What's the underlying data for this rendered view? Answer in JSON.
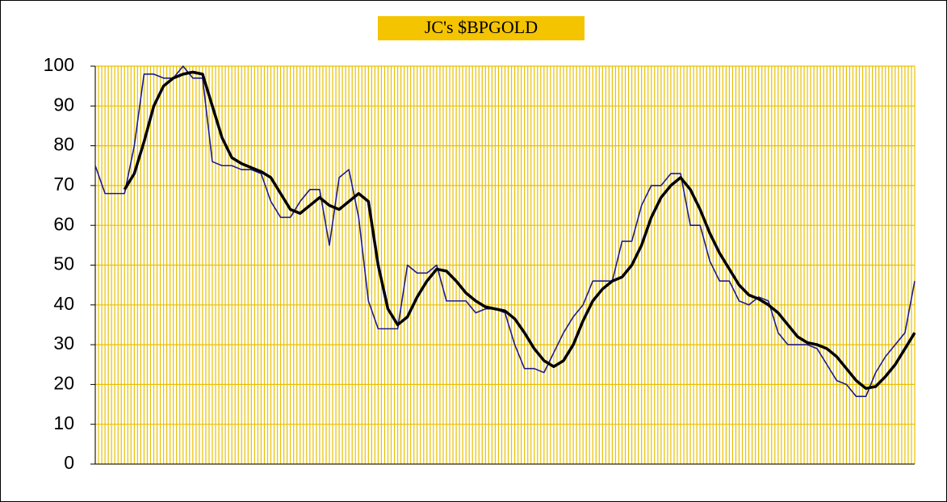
{
  "chart_data": {
    "type": "line",
    "title": "JC's $BPGOLD",
    "categories": [
      null,
      null,
      null,
      null,
      null,
      null,
      null,
      null,
      null,
      null,
      null,
      null,
      null,
      null,
      null,
      null,
      null,
      null,
      null,
      null,
      null,
      null,
      null,
      null,
      null,
      null,
      null,
      null,
      null,
      null,
      null,
      null,
      null,
      null,
      null,
      null,
      null,
      null,
      null,
      null,
      null,
      null,
      null,
      null,
      null,
      null,
      null,
      null,
      null,
      null,
      null,
      null,
      null,
      null,
      null,
      null,
      null,
      null,
      null,
      null,
      null,
      null,
      null,
      null,
      null,
      null,
      null,
      null,
      null,
      null,
      null,
      null,
      null,
      null,
      null,
      null,
      null,
      null,
      null,
      null,
      null,
      null,
      null,
      null,
      null
    ],
    "series": [
      {
        "color": "#1c1c8a",
        "values": [
          75,
          68,
          68,
          68,
          80,
          98,
          98,
          97,
          97,
          100,
          97,
          97,
          76,
          75,
          75,
          74,
          74,
          73,
          66,
          62,
          62,
          66,
          69,
          69,
          55,
          72,
          74,
          62,
          41,
          34,
          34,
          34,
          50,
          48,
          48,
          50,
          41,
          41,
          41,
          38,
          39,
          39,
          38,
          30,
          24,
          24,
          23,
          28,
          33,
          37,
          40,
          46,
          46,
          46,
          56,
          56,
          65,
          70,
          70,
          73,
          73,
          60,
          60,
          51,
          46,
          46,
          41,
          40,
          42,
          41,
          33,
          30,
          30,
          30,
          29,
          25,
          21,
          20,
          17,
          17,
          23,
          27,
          30,
          33,
          46
        ]
      },
      {
        "color": "#000000",
        "values": [
          null,
          null,
          null,
          69,
          73,
          81,
          90,
          95,
          97,
          98,
          98.5,
          98,
          90,
          82,
          77,
          75.5,
          74.5,
          73.5,
          72,
          68,
          64,
          63,
          65,
          67,
          65,
          64,
          66,
          68,
          66,
          50,
          39,
          35,
          37,
          42,
          46,
          49,
          48.5,
          46,
          43,
          41,
          39.5,
          39,
          38.5,
          36.5,
          33,
          29,
          26,
          24.5,
          26,
          30,
          36,
          41,
          44,
          46,
          47,
          50,
          55,
          62,
          67,
          70,
          72,
          69,
          64,
          58,
          53,
          49,
          45,
          42.5,
          41.5,
          40,
          38,
          35,
          32,
          30.5,
          30,
          29,
          27,
          24,
          21,
          19,
          19.5,
          22,
          25,
          29,
          33
        ]
      }
    ],
    "ylim": [
      0,
      100
    ],
    "yticks": [
      0,
      10,
      20,
      30,
      40,
      50,
      60,
      70,
      80,
      90,
      100
    ],
    "grid": true
  }
}
